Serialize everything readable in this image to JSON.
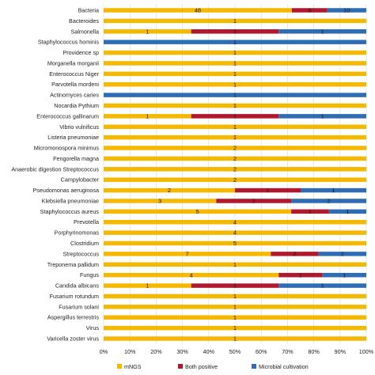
{
  "chart_data": {
    "type": "bar",
    "orientation": "horizontal",
    "stacked": "percent",
    "x_ticks": [
      "0%",
      "10%",
      "20%",
      "30%",
      "40%",
      "50%",
      "60%",
      "70%",
      "80%",
      "90%",
      "100%"
    ],
    "xlim": [
      0,
      100
    ],
    "grid": true,
    "legend_position": "bottom",
    "categories": [
      "Bacteria",
      "Bacteroides",
      "Salmonella",
      "Staphylococcus hominis",
      "Providence sp",
      "Morganella morganii",
      "Enterococcus Niger",
      "Parvotella mordeni",
      "Actinomyces caries",
      "Nocardia Pythium",
      "Enterococcus gallinarum",
      "Vibrio vulnificus",
      "Listeria pneumoniae",
      "Micromonospora minimus",
      "Fengorella magna",
      "Anaerobic digestion Streptococcus",
      "Campylobacter",
      "Pseudomonas aeruginosa",
      "Klebsiella pneumoniae",
      "Staphylococcus aureus",
      "Prevotella",
      "Porphyrinomonas",
      "Clostridium",
      "Streptococcus",
      "Treponema pallidum",
      "Fungus",
      "Candida albicans",
      "Fusarium rotundum",
      "Fusarium solani",
      "Aspergillus terrestris",
      "Virus",
      "Varicella zoster virus"
    ],
    "series": [
      {
        "name": "mNGS",
        "color": "#f5b800",
        "values": [
          48,
          1,
          1,
          0,
          1,
          1,
          1,
          1,
          0,
          1,
          1,
          1,
          1,
          2,
          2,
          2,
          2,
          2,
          3,
          5,
          4,
          4,
          5,
          7,
          1,
          4,
          1,
          1,
          1,
          1,
          1,
          1
        ]
      },
      {
        "name": "Both positive",
        "color": "#b0182e",
        "values": [
          9,
          0,
          1,
          0,
          0,
          0,
          0,
          0,
          0,
          0,
          1,
          0,
          0,
          0,
          0,
          0,
          0,
          1,
          2,
          1,
          0,
          0,
          0,
          2,
          0,
          1,
          1,
          0,
          0,
          0,
          0,
          0
        ]
      },
      {
        "name": "Microbial cultivation",
        "color": "#2e6db5",
        "values": [
          10,
          0,
          1,
          1,
          0,
          0,
          0,
          0,
          1,
          0,
          1,
          0,
          0,
          0,
          0,
          0,
          0,
          1,
          2,
          1,
          0,
          0,
          0,
          2,
          0,
          1,
          1,
          0,
          0,
          0,
          0,
          0
        ]
      }
    ],
    "segment_labels": [
      [
        "48",
        "9",
        "10"
      ],
      [
        "1",
        "",
        ""
      ],
      [
        "1",
        "1",
        "1"
      ],
      [
        "",
        "",
        "1"
      ],
      [
        "1",
        "",
        ""
      ],
      [
        "1",
        "",
        ""
      ],
      [
        "1",
        "",
        ""
      ],
      [
        "1",
        "",
        ""
      ],
      [
        "",
        "",
        "1"
      ],
      [
        "1",
        "",
        ""
      ],
      [
        "1",
        "1",
        "1"
      ],
      [
        "1",
        "",
        ""
      ],
      [
        "1",
        "",
        ""
      ],
      [
        "2",
        "",
        ""
      ],
      [
        "2",
        "",
        ""
      ],
      [
        "2",
        "",
        ""
      ],
      [
        "2",
        "",
        ""
      ],
      [
        "2",
        "1",
        "1"
      ],
      [
        "3",
        "2",
        "2"
      ],
      [
        "5",
        "1",
        "1"
      ],
      [
        "4",
        "",
        ""
      ],
      [
        "4",
        "",
        ""
      ],
      [
        "5",
        "",
        ""
      ],
      [
        "7",
        "2",
        "2"
      ],
      [
        "1",
        "",
        ""
      ],
      [
        "4",
        "1",
        "1"
      ],
      [
        "1",
        "1",
        "1"
      ],
      [
        "1",
        "",
        ""
      ],
      [
        "1",
        "",
        ""
      ],
      [
        "1",
        "",
        ""
      ],
      [
        "1",
        "",
        ""
      ],
      [
        "1",
        "",
        ""
      ]
    ]
  }
}
